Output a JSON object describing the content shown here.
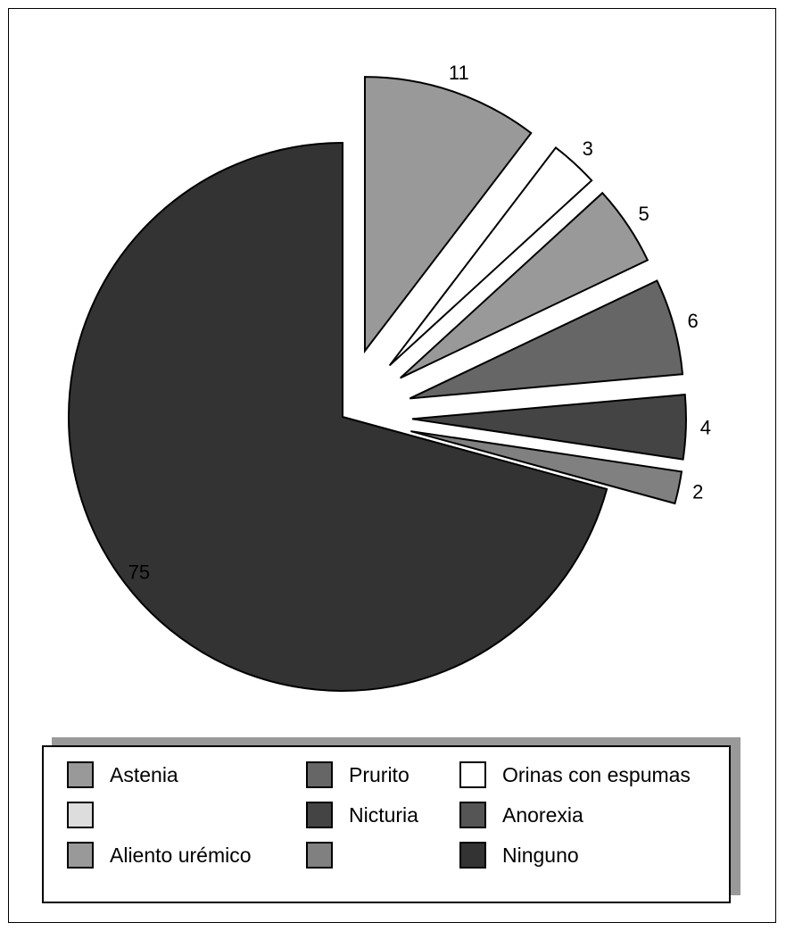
{
  "chart_data": {
    "type": "pie",
    "title": "",
    "slices": [
      {
        "value": 11,
        "label": "11",
        "color": "#999999"
      },
      {
        "value": 3,
        "label": "3",
        "color": "#ffffff"
      },
      {
        "value": 5,
        "label": "5",
        "color": "#999999"
      },
      {
        "value": 6,
        "label": "6",
        "color": "#666666"
      },
      {
        "value": 4,
        "label": "4",
        "color": "#444444"
      },
      {
        "value": 2,
        "label": "2",
        "color": "#808080"
      },
      {
        "value": 75,
        "label": "75",
        "color": "#333333"
      }
    ],
    "exploded": [
      true,
      true,
      true,
      true,
      true,
      true,
      false
    ],
    "legend": {
      "placement": "bottom",
      "items": [
        {
          "label": "Astenia",
          "color": "#999999"
        },
        {
          "label": "Prurito",
          "color": "#666666"
        },
        {
          "label": "Orinas con espumas",
          "color": "#ffffff"
        },
        {
          "label": "",
          "color": "#dddddd"
        },
        {
          "label": "Nicturia",
          "color": "#444444"
        },
        {
          "label": "Anorexia",
          "color": "#555555"
        },
        {
          "label": "Aliento urémico",
          "color": "#999999"
        },
        {
          "label": "",
          "color": "#808080"
        },
        {
          "label": "Ninguno",
          "color": "#333333"
        }
      ]
    }
  }
}
